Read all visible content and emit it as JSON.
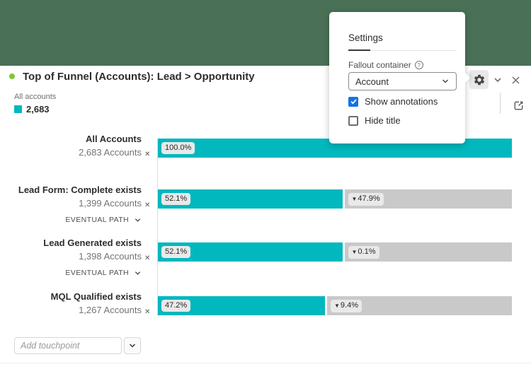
{
  "header": {
    "title": "Top of Funnel (Accounts): Lead > Opportunity",
    "status_dot_color": "#7ec636"
  },
  "legend": {
    "label": "All accounts",
    "value": "2,683",
    "swatch_color": "#00b8be"
  },
  "settings_popover": {
    "title": "Settings",
    "field_label": "Fallout container",
    "help_icon": "?",
    "dropdown_value": "Account",
    "checkboxes": [
      {
        "label": "Show annotations",
        "checked": true
      },
      {
        "label": "Hide title",
        "checked": false
      }
    ]
  },
  "chart_data": {
    "type": "funnel",
    "title": "Top of Funnel (Accounts): Lead > Opportunity",
    "total": {
      "label": "All accounts",
      "value": 2683
    },
    "steps": [
      {
        "name": "All Accounts",
        "count": 2683,
        "count_label": "2,683 Accounts",
        "percent": 100.0,
        "percent_label": "100.0%",
        "fallout": null,
        "fallout_label": null,
        "path_label": null
      },
      {
        "name": "Lead Form: Complete exists",
        "count": 1399,
        "count_label": "1,399 Accounts",
        "percent": 52.1,
        "percent_label": "52.1%",
        "fallout": 47.9,
        "fallout_label": "47.9%",
        "path_label": "EVENTUAL PATH"
      },
      {
        "name": "Lead Generated exists",
        "count": 1398,
        "count_label": "1,398 Accounts",
        "percent": 52.1,
        "percent_label": "52.1%",
        "fallout": 0.1,
        "fallout_label": "0.1%",
        "path_label": "EVENTUAL PATH"
      },
      {
        "name": "MQL Qualified exists",
        "count": 1267,
        "count_label": "1,267 Accounts",
        "percent": 47.2,
        "percent_label": "47.2%",
        "fallout": 9.4,
        "fallout_label": "9.4%",
        "path_label": null
      }
    ],
    "bar_colors": {
      "step": "#00b8be",
      "fallout": "#c9c9c9"
    }
  },
  "add_touchpoint": {
    "placeholder": "Add touchpoint"
  },
  "icons": {
    "fallout_arrow": "▼",
    "remove": "✕"
  },
  "colors": {
    "header_band": "#4a7157",
    "accent_teal": "#00b8be",
    "fallout_gray": "#c9c9c9",
    "checkbox_blue": "#1473e6"
  }
}
